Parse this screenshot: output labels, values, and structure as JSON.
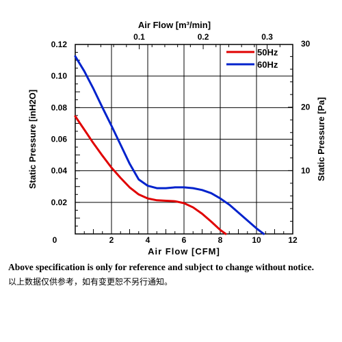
{
  "chart_data": {
    "type": "line",
    "xlabel": "Air Flow  [CFM]",
    "x2label": "Air Flow  [m³/min]",
    "ylabel": "Static Pressure [inH2O]",
    "y2label": "Static Pressure [Pa]",
    "xlim": [
      0,
      12
    ],
    "ylim": [
      0,
      0.12
    ],
    "x2lim": [
      0,
      0.34
    ],
    "y2lim": [
      0,
      29.9
    ],
    "xticks": [
      "0",
      "2",
      "4",
      "6",
      "8",
      "10",
      "12"
    ],
    "x2ticks": [
      "0.1",
      "0.2",
      "0.3"
    ],
    "yticks": [
      "0.02",
      "0.04",
      "0.06",
      "0.08",
      "0.10",
      "0.12"
    ],
    "y2ticks": [
      "10",
      "20",
      "30"
    ],
    "grid": true,
    "legend": "top-right",
    "series": [
      {
        "name": "50Hz",
        "color": "#e00000",
        "x": [
          0,
          0.5,
          1,
          1.5,
          2,
          2.5,
          3,
          3.5,
          4,
          4.5,
          5,
          5.5,
          6,
          6.5,
          7,
          7.5,
          8,
          8.3
        ],
        "y": [
          0.0745,
          0.066,
          0.0575,
          0.0495,
          0.042,
          0.0355,
          0.0295,
          0.025,
          0.0225,
          0.0213,
          0.021,
          0.0207,
          0.0195,
          0.0168,
          0.0128,
          0.0078,
          0.0025,
          0.0
        ]
      },
      {
        "name": "60Hz",
        "color": "#0022cc",
        "x": [
          0,
          0.5,
          1,
          1.5,
          2,
          2.5,
          3,
          3.5,
          4,
          4.5,
          5,
          5.5,
          6,
          6.5,
          7,
          7.5,
          8,
          8.5,
          9,
          9.5,
          10,
          10.4
        ],
        "y": [
          0.1125,
          0.103,
          0.092,
          0.08,
          0.0685,
          0.0565,
          0.0445,
          0.0345,
          0.0305,
          0.029,
          0.029,
          0.0295,
          0.0295,
          0.029,
          0.0278,
          0.0258,
          0.0225,
          0.0185,
          0.0135,
          0.0085,
          0.0035,
          0.0
        ]
      }
    ]
  },
  "notes": {
    "en": "Above specification is only for reference and subject to change without notice.",
    "cn": "以上数据仅供参考，如有变更恕不另行通知。"
  }
}
